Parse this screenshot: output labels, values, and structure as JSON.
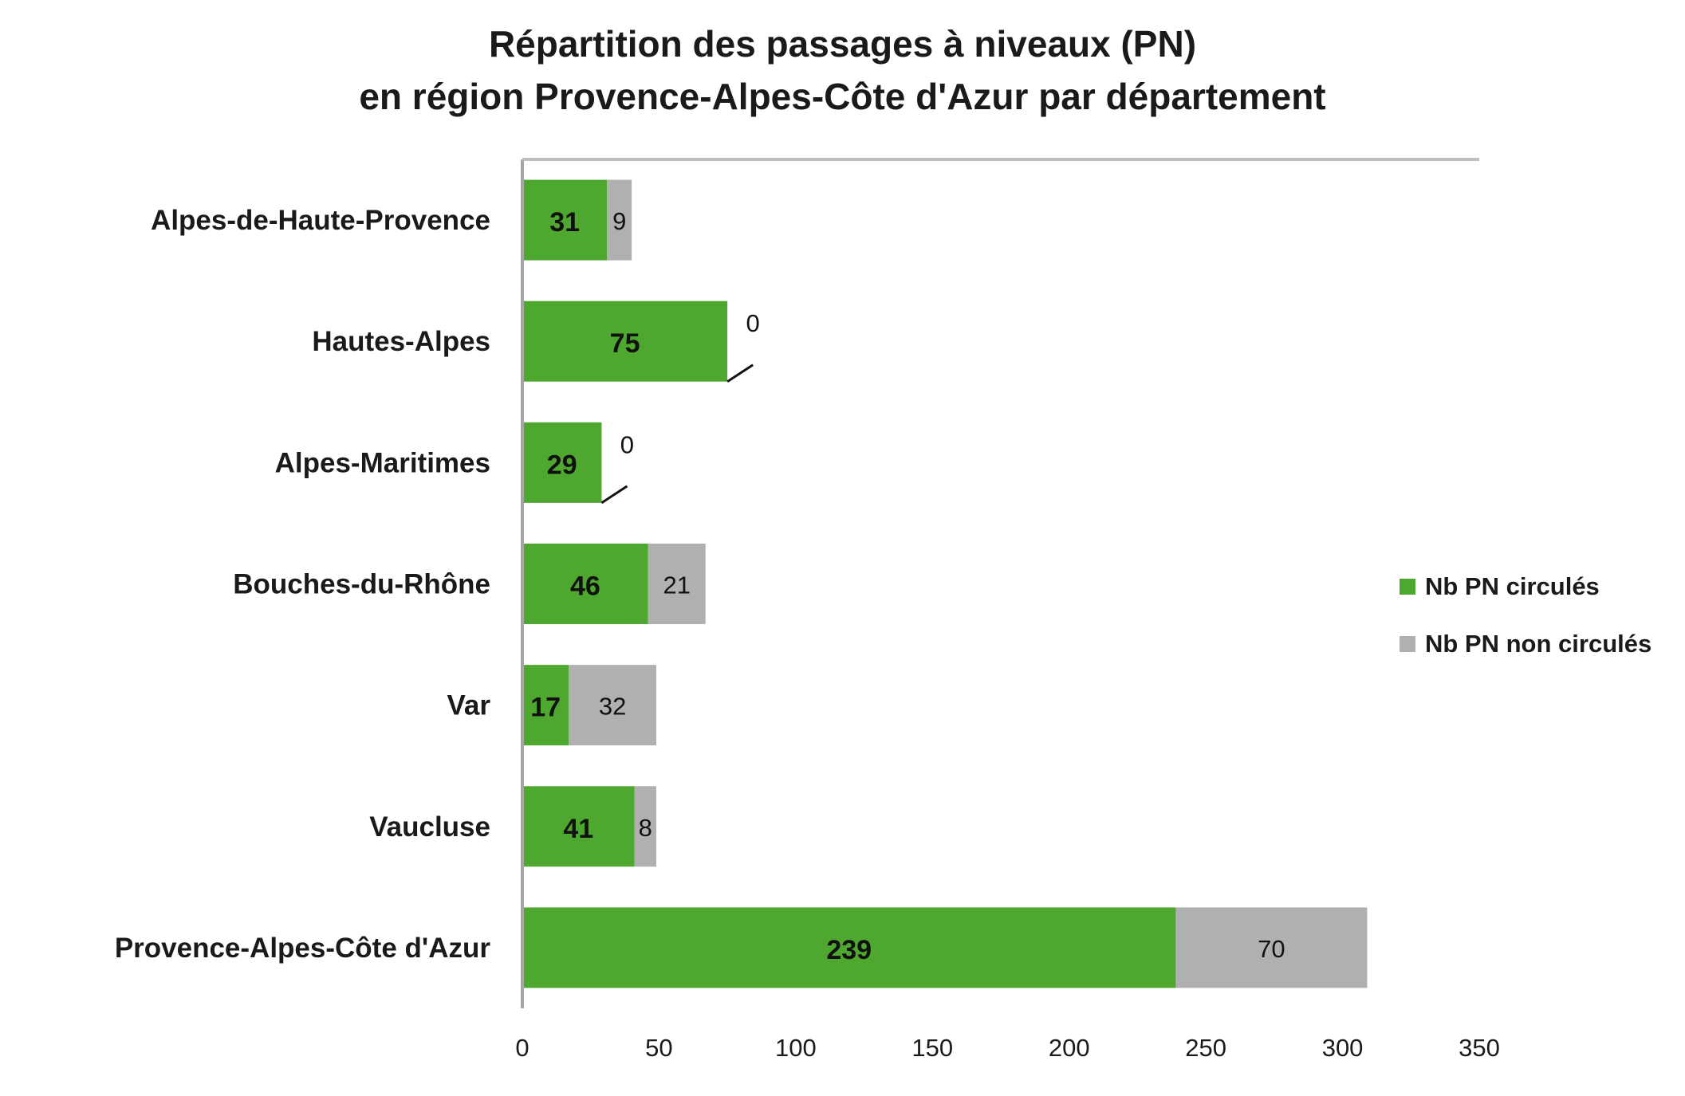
{
  "chart_data": {
    "type": "bar",
    "orientation": "horizontal",
    "stacked": true,
    "title": [
      "Répartition des passages à niveaux (PN)",
      "en région Provence-Alpes-Côte d'Azur par département"
    ],
    "categories": [
      "Alpes-de-Haute-Provence",
      "Hautes-Alpes",
      "Alpes-Maritimes",
      "Bouches-du-Rhône",
      "Var",
      "Vaucluse",
      "Provence-Alpes-Côte d'Azur"
    ],
    "series": [
      {
        "name": "Nb PN circulés",
        "color": "#4ea72e",
        "values": [
          31,
          75,
          29,
          46,
          17,
          41,
          239
        ]
      },
      {
        "name": "Nb PN non circulés",
        "color": "#b0b0b0",
        "values": [
          9,
          0,
          0,
          21,
          32,
          8,
          70
        ]
      }
    ],
    "xlim": [
      0,
      350
    ],
    "xticks": [
      0,
      50,
      100,
      150,
      200,
      250,
      300,
      350
    ],
    "grid": false,
    "legend_position": "right"
  }
}
